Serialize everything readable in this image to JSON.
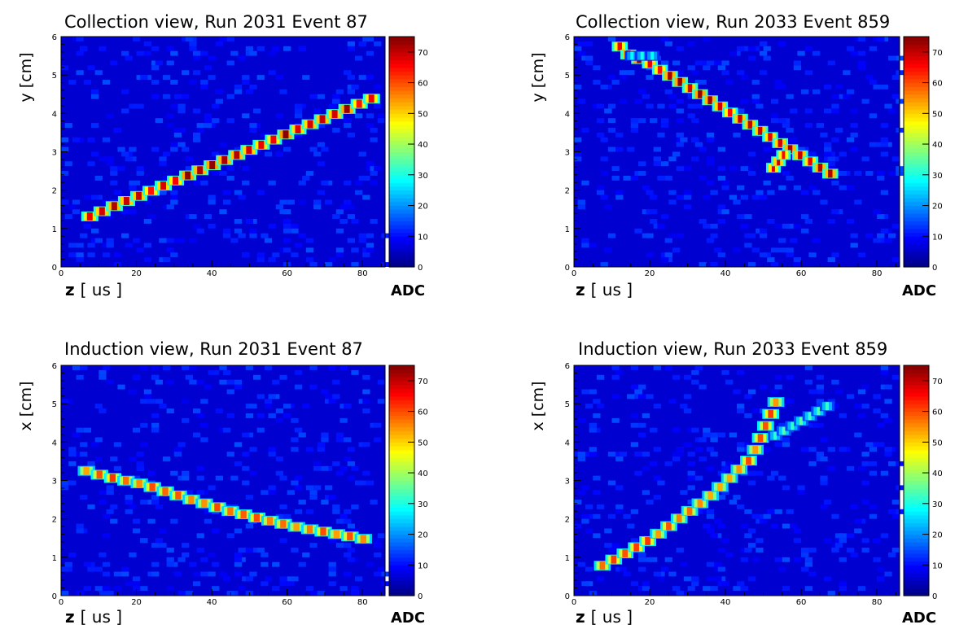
{
  "chart_data": [
    {
      "type": "heatmap",
      "title": "Collection view, Run 2031 Event 87",
      "xlabel_bold": "z",
      "xlabel_unit": "[ us ]",
      "ylabel": "y [cm]",
      "xlim": [
        0,
        86
      ],
      "ylim": [
        0,
        6
      ],
      "x_ticks": [
        "0",
        "20",
        "40",
        "60",
        "80"
      ],
      "y_ticks": [
        "0",
        "1",
        "2",
        "3",
        "4",
        "5",
        "6"
      ],
      "colorbar": {
        "label": "ADC",
        "range": [
          0,
          75
        ],
        "ticks": [
          "0",
          "10",
          "20",
          "30",
          "40",
          "50",
          "60",
          "70"
        ],
        "colormap": "jet"
      },
      "tracks": [
        {
          "points": [
            [
              6,
              1.25
            ],
            [
              84,
              4.45
            ]
          ],
          "adc_peak": 75,
          "segments": 24
        }
      ]
    },
    {
      "type": "heatmap",
      "title": "Collection view, Run 2033 Event 859",
      "xlabel_bold": "z",
      "xlabel_unit": "[ us ]",
      "ylabel": "y [cm]",
      "xlim": [
        0,
        86
      ],
      "ylim": [
        0,
        6
      ],
      "x_ticks": [
        "0",
        "20",
        "40",
        "60",
        "80"
      ],
      "y_ticks": [
        "0",
        "1",
        "2",
        "3",
        "4",
        "5",
        "6"
      ],
      "colorbar": {
        "label": "ADC",
        "range": [
          0,
          75
        ],
        "ticks": [
          "0",
          "10",
          "20",
          "30",
          "40",
          "50",
          "60",
          "70"
        ],
        "colormap": "jet"
      },
      "tracks": [
        {
          "points": [
            [
              11,
              5.85
            ],
            [
              14,
              5.55
            ],
            [
              20,
              5.3
            ],
            [
              69,
              2.35
            ]
          ],
          "adc_peak": 75,
          "segments": 22
        },
        {
          "points": [
            [
              14,
              5.5
            ],
            [
              22,
              5.5
            ]
          ],
          "adc_peak": 30,
          "segments": 3
        },
        {
          "points": [
            [
              52,
              2.5
            ],
            [
              56,
              3.0
            ]
          ],
          "adc_peak": 70,
          "segments": 3
        }
      ]
    },
    {
      "type": "heatmap",
      "title": "Induction view, Run 2031 Event 87",
      "xlabel_bold": "z",
      "xlabel_unit": "[ us ]",
      "ylabel": "x [cm]",
      "xlim": [
        0,
        86
      ],
      "ylim": [
        0,
        6
      ],
      "x_ticks": [
        "0",
        "20",
        "40",
        "60",
        "80"
      ],
      "y_ticks": [
        "0",
        "1",
        "2",
        "3",
        "4",
        "5",
        "6"
      ],
      "colorbar": {
        "label": "ADC",
        "range": [
          0,
          75
        ],
        "ticks": [
          "0",
          "10",
          "20",
          "30",
          "40",
          "50",
          "60",
          "70"
        ],
        "colormap": "jet"
      },
      "tracks": [
        {
          "points": [
            [
              5,
              3.3
            ],
            [
              12,
              3.1
            ],
            [
              22,
              2.9
            ],
            [
              33,
              2.55
            ],
            [
              45,
              2.2
            ],
            [
              62,
              1.8
            ],
            [
              82,
              1.45
            ]
          ],
          "adc_peak": 62,
          "segments": 22
        }
      ]
    },
    {
      "type": "heatmap",
      "title": "Induction view, Run 2033 Event 859",
      "xlabel_bold": "z",
      "xlabel_unit": "[ us ]",
      "ylabel": "x [cm]",
      "xlim": [
        0,
        86
      ],
      "ylim": [
        0,
        6
      ],
      "x_ticks": [
        "0",
        "20",
        "40",
        "60",
        "80"
      ],
      "y_ticks": [
        "0",
        "1",
        "2",
        "3",
        "4",
        "5",
        "6"
      ],
      "colorbar": {
        "label": "ADC",
        "range": [
          0,
          75
        ],
        "ticks": [
          "0",
          "10",
          "20",
          "30",
          "40",
          "50",
          "60",
          "70"
        ],
        "colormap": "jet"
      },
      "tracks": [
        {
          "points": [
            [
              6,
              0.7
            ],
            [
              20,
              1.45
            ],
            [
              36,
              2.6
            ],
            [
              47,
              3.6
            ],
            [
              54,
              5.2
            ]
          ],
          "adc_peak": 62,
          "segments": 20
        },
        {
          "points": [
            [
              52,
              4.1
            ],
            [
              68,
              5.0
            ]
          ],
          "adc_peak": 35,
          "segments": 7
        }
      ]
    }
  ]
}
